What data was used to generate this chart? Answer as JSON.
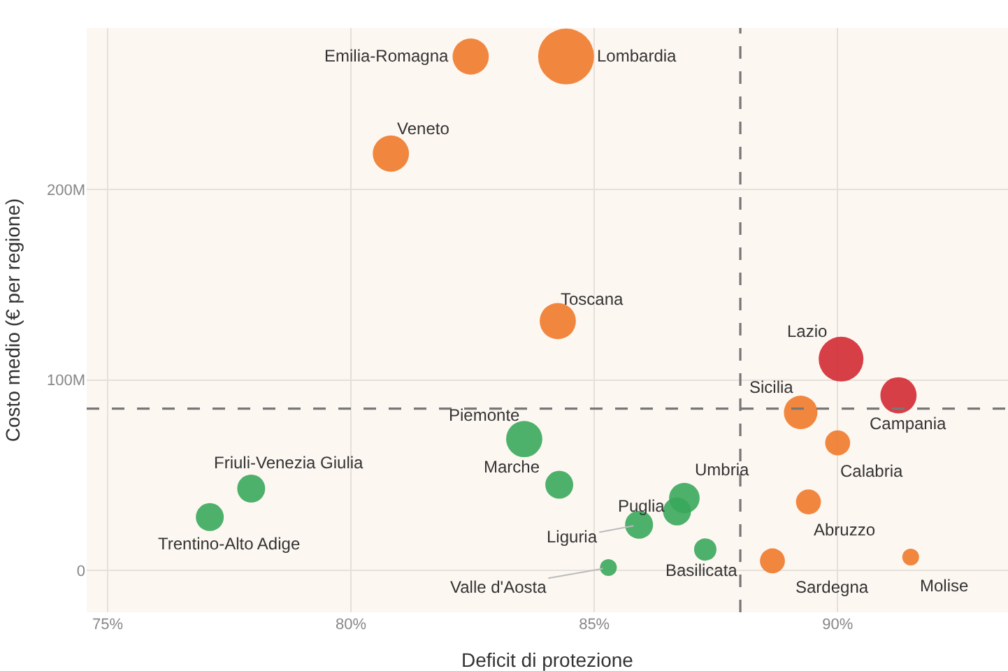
{
  "chart_data": {
    "type": "bubble",
    "xlabel": "Deficit di protezione",
    "ylabel": "Costo medio (€ per regione)",
    "x": [
      82.46,
      84.42,
      80.82,
      84.25,
      90.07,
      91.25,
      89.24,
      90.0,
      89.4,
      88.66,
      91.5,
      83.56,
      84.28,
      77.95,
      77.1,
      86.85,
      86.7,
      85.92,
      87.28,
      85.29
    ],
    "values": [
      270,
      270,
      219,
      131,
      111,
      92,
      83,
      67,
      36,
      5,
      7,
      69,
      45,
      43,
      28,
      38,
      31,
      24,
      11,
      1.5
    ],
    "sizes": [
      0.42,
      1,
      0.42,
      0.42,
      0.64,
      0.42,
      0.36,
      0.2,
      0.2,
      0.2,
      0.09,
      0.42,
      0.25,
      0.25,
      0.25,
      0.3,
      0.25,
      0.25,
      0.16,
      0.09
    ],
    "colors": [
      "#ef7a2b",
      "#ef7a2b",
      "#ef7a2b",
      "#ef7a2b",
      "#d32a33",
      "#d32a33",
      "#ef7a2b",
      "#ef7a2b",
      "#ef7a2b",
      "#ef7a2b",
      "#ef7a2b",
      "#3aa85c",
      "#3aa85c",
      "#3aa85c",
      "#3aa85c",
      "#3aa85c",
      "#3aa85c",
      "#3aa85c",
      "#3aa85c",
      "#3aa85c"
    ],
    "xlim": [
      74.57,
      93.5
    ],
    "ylim": [
      -22,
      285
    ],
    "xticks": [
      {
        "value": 75,
        "label": "75%"
      },
      {
        "value": 80,
        "label": "80%"
      },
      {
        "value": 85,
        "label": "85%"
      },
      {
        "value": 90,
        "label": "90%"
      }
    ],
    "yticks": [
      0,
      {
        "value": 100,
        "label": "100M"
      },
      {
        "value": 200,
        "label": "200M"
      }
    ],
    "grid": true,
    "ref_lines": [
      {
        "axis": "x",
        "value": 88,
        "color": "#777777",
        "line_style": "dashed"
      },
      {
        "axis": "y",
        "value": 85,
        "color": "#777777",
        "line_style": "dashed"
      }
    ],
    "annotations": [
      {
        "text": "Emilia-Romagna",
        "x": 82.46,
        "y": 270
      },
      {
        "text": "Lombardia",
        "x": 84.42,
        "y": 270
      },
      {
        "text": "Veneto",
        "x": 80.82,
        "y": 219
      },
      {
        "text": "Toscana",
        "x": 84.25,
        "y": 131
      },
      {
        "text": "Lazio",
        "x": 90.07,
        "y": 111
      },
      {
        "text": "Campania",
        "x": 91.25,
        "y": 92
      },
      {
        "text": "Sicilia",
        "x": 89.24,
        "y": 83
      },
      {
        "text": "Calabria",
        "x": 90.0,
        "y": 67
      },
      {
        "text": "Abruzzo",
        "x": 89.4,
        "y": 36
      },
      {
        "text": "Sardegna",
        "x": 88.66,
        "y": 5
      },
      {
        "text": "Molise",
        "x": 91.5,
        "y": 7
      },
      {
        "text": "Piemonte",
        "x": 83.56,
        "y": 69
      },
      {
        "text": "Marche",
        "x": 84.28,
        "y": 45
      },
      {
        "text": "Friuli-Venezia Giulia",
        "x": 77.95,
        "y": 43
      },
      {
        "text": "Trentino-Alto Adige",
        "x": 77.1,
        "y": 28
      },
      {
        "text": "Umbria",
        "x": 86.85,
        "y": 38
      },
      {
        "text": "Puglia",
        "x": 86.7,
        "y": 31
      },
      {
        "text": "Liguria",
        "x": 85.92,
        "y": 24
      },
      {
        "text": "Basilicata",
        "x": 87.28,
        "y": 11
      },
      {
        "text": "Valle d'Aosta",
        "x": 85.29,
        "y": 1.5
      }
    ]
  }
}
